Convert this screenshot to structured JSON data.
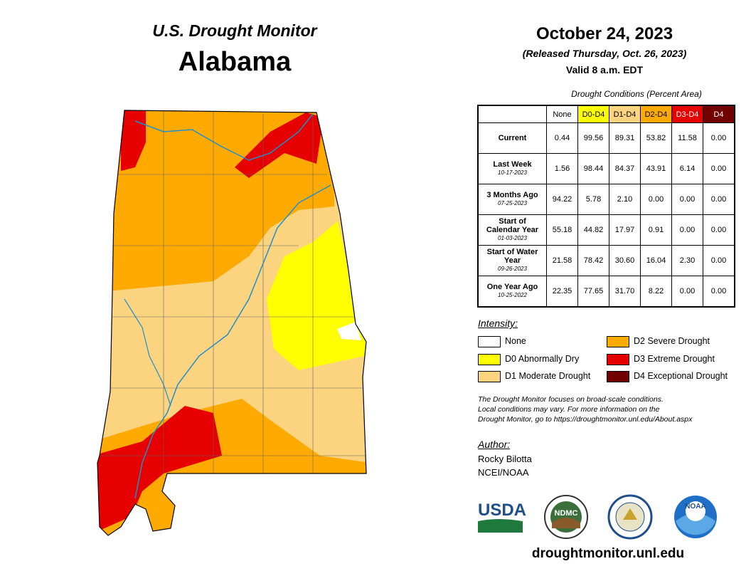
{
  "header": {
    "program": "U.S. Drought Monitor",
    "state": "Alabama",
    "date": "October 24, 2023",
    "released": "(Released Thursday, Oct. 26, 2023)",
    "valid": "Valid 8 a.m. EDT"
  },
  "table": {
    "caption": "Drought Conditions (Percent Area)",
    "columns": [
      {
        "label": "None",
        "color": "#ffffff",
        "text_color": "#000000"
      },
      {
        "label": "D0-D4",
        "color": "#ffff00",
        "text_color": "#000000"
      },
      {
        "label": "D1-D4",
        "color": "#fcd37f",
        "text_color": "#000000"
      },
      {
        "label": "D2-D4",
        "color": "#ffaa00",
        "text_color": "#000000"
      },
      {
        "label": "D3-D4",
        "color": "#e60000",
        "text_color": "#ffffff"
      },
      {
        "label": "D4",
        "color": "#730000",
        "text_color": "#ffffff"
      }
    ],
    "rows": [
      {
        "label": "Current",
        "values": [
          "0.44",
          "99.56",
          "89.31",
          "53.82",
          "11.58",
          "0.00"
        ]
      },
      {
        "label": "Last Week",
        "date": "10-17-2023",
        "values": [
          "1.56",
          "98.44",
          "84.37",
          "43.91",
          "6.14",
          "0.00"
        ]
      },
      {
        "label": "3 Months Ago",
        "date": "07-25-2023",
        "values": [
          "94.22",
          "5.78",
          "2.10",
          "0.00",
          "0.00",
          "0.00"
        ]
      },
      {
        "label": "Start of Calendar Year",
        "date": "01-03-2023",
        "values": [
          "55.18",
          "44.82",
          "17.97",
          "0.91",
          "0.00",
          "0.00"
        ]
      },
      {
        "label": "Start of Water Year",
        "date": "09-26-2023",
        "values": [
          "21.58",
          "78.42",
          "30.60",
          "16.04",
          "2.30",
          "0.00"
        ]
      },
      {
        "label": "One Year Ago",
        "date": "10-25-2022",
        "values": [
          "22.35",
          "77.65",
          "31.70",
          "8.22",
          "0.00",
          "0.00"
        ]
      }
    ]
  },
  "legend": {
    "title": "Intensity:",
    "items": [
      {
        "label": "None",
        "color": "#ffffff"
      },
      {
        "label": "D0 Abnormally Dry",
        "color": "#ffff00"
      },
      {
        "label": "D1 Moderate Drought",
        "color": "#fcd37f"
      },
      {
        "label": "D2 Severe Drought",
        "color": "#ffaa00"
      },
      {
        "label": "D3 Extreme Drought",
        "color": "#e60000"
      },
      {
        "label": "D4 Exceptional Drought",
        "color": "#730000"
      }
    ]
  },
  "note": [
    "The Drought Monitor focuses on broad-scale conditions.",
    "Local conditions may vary. For more information on the",
    "Drought Monitor, go to https://droughtmonitor.unl.edu/About.aspx"
  ],
  "author": {
    "title": "Author:",
    "name": "Rocky Bilotta",
    "org": "NCEI/NOAA"
  },
  "logos": {
    "usda": "USDA",
    "ndmc": "NDMC",
    "noaa": "NOAA"
  },
  "website": "droughtmonitor.unl.edu"
}
